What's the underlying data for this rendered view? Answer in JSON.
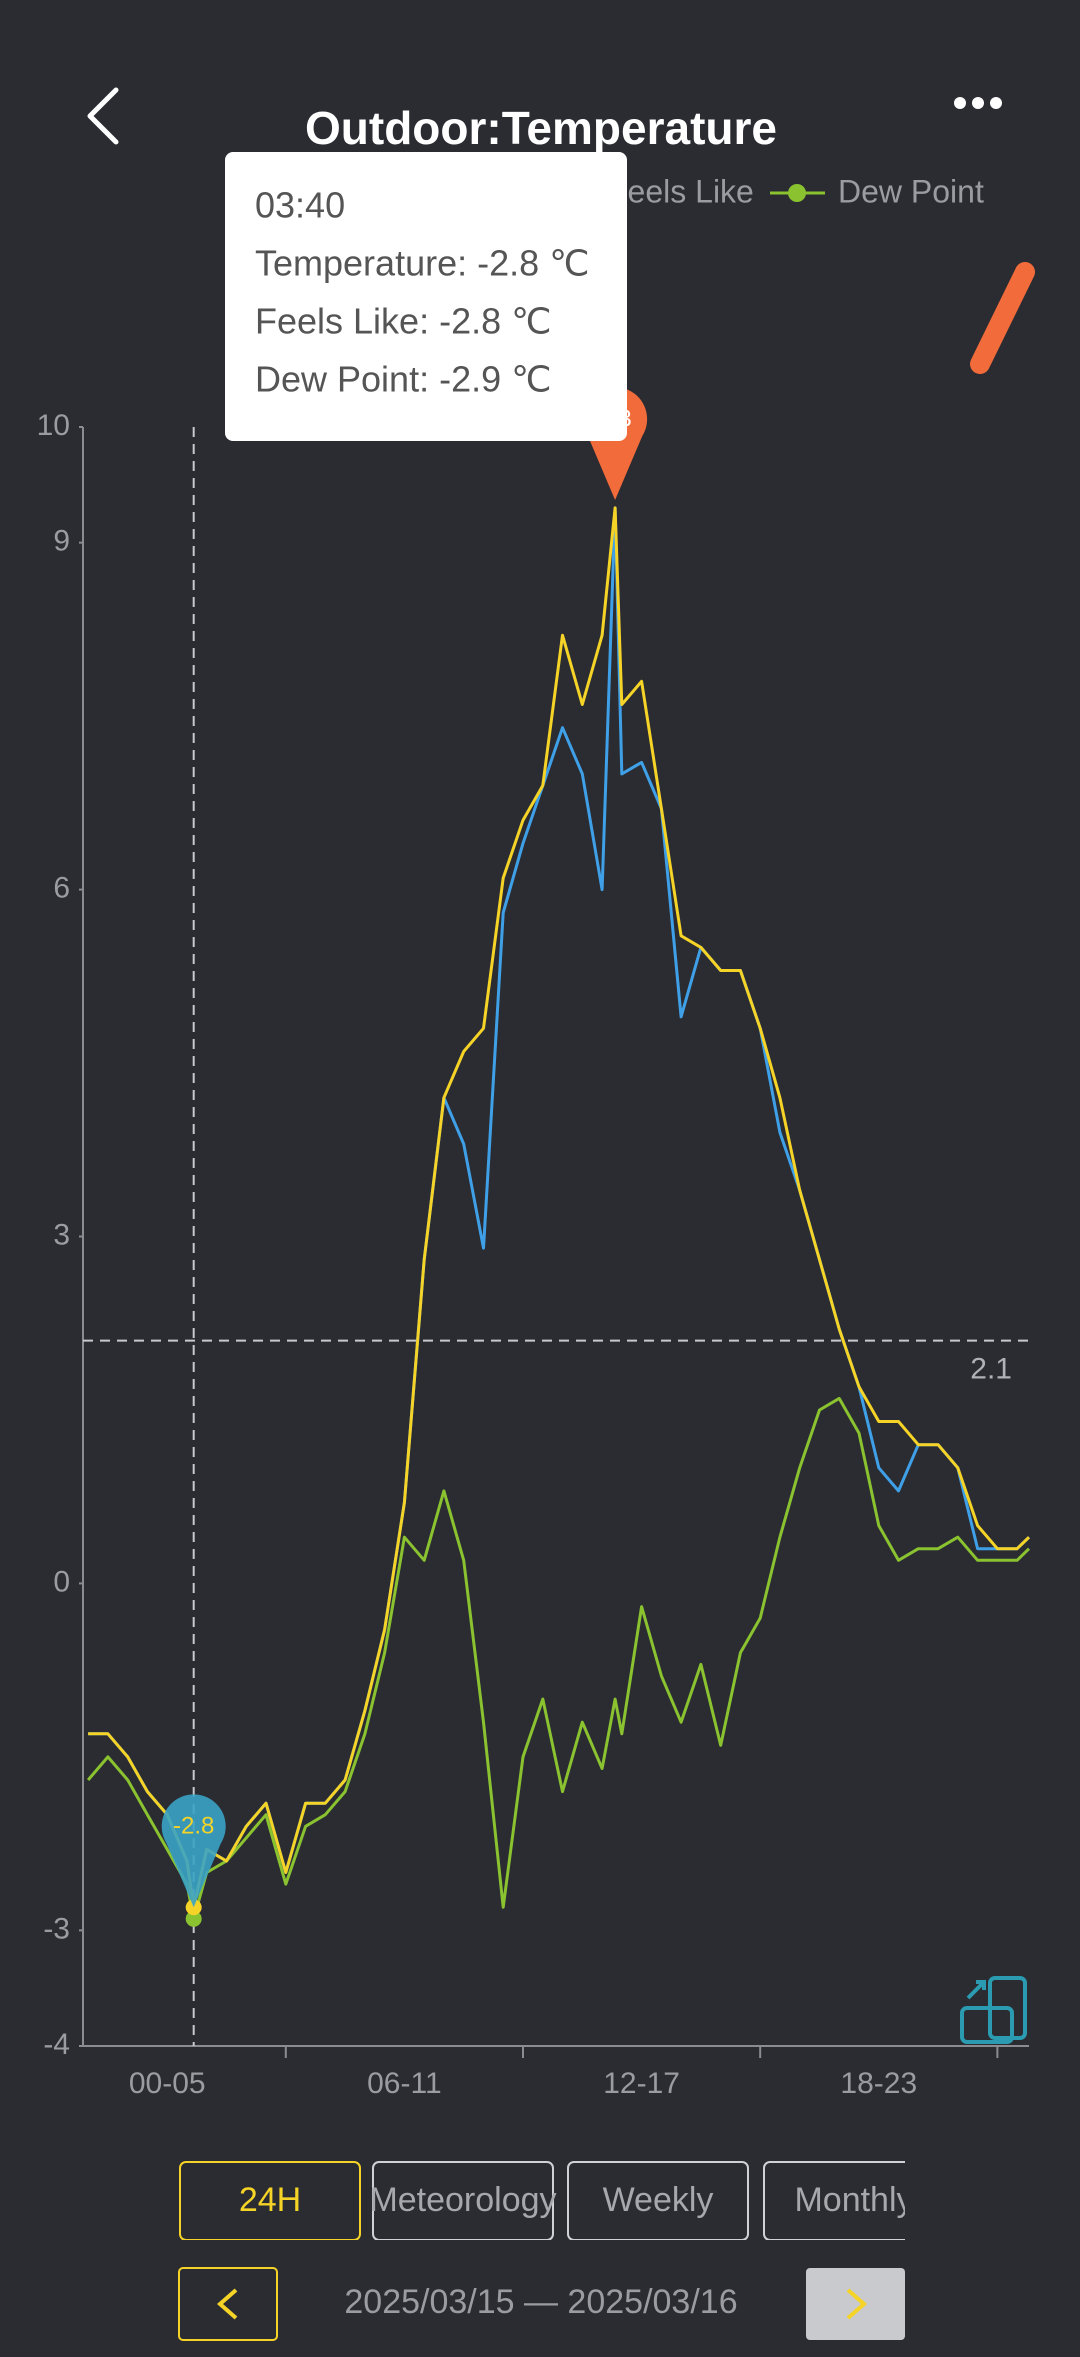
{
  "header": {
    "title": "Outdoor:Temperature"
  },
  "chart_data": {
    "type": "line",
    "x": [
      1,
      1.5,
      2,
      2.5,
      3,
      3.5,
      3.67,
      4,
      4.5,
      5,
      5.5,
      6,
      6.5,
      7,
      7.5,
      8,
      8.5,
      9,
      9.5,
      10,
      10.5,
      11,
      11.5,
      12,
      12.5,
      13,
      13.5,
      14,
      14.33,
      14.5,
      15,
      15.5,
      16,
      16.5,
      17,
      17.5,
      18,
      18.5,
      19,
      19.5,
      20,
      20.5,
      21,
      21.5,
      22,
      22.5,
      23,
      23.5,
      24,
      24.5,
      24.8
    ],
    "series": [
      {
        "name": "Temperature",
        "color": "#f5d327",
        "values": [
          -1.3,
          -1.3,
          -1.5,
          -1.8,
          -2.0,
          -2.4,
          -2.8,
          -2.3,
          -2.4,
          -2.1,
          -1.9,
          -2.5,
          -1.9,
          -1.9,
          -1.7,
          -1.1,
          -0.4,
          0.7,
          2.8,
          4.2,
          4.6,
          4.8,
          6.1,
          6.6,
          6.9,
          8.2,
          7.6,
          8.2,
          9.3,
          7.6,
          7.8,
          6.7,
          5.6,
          5.5,
          5.3,
          5.3,
          4.8,
          4.2,
          3.4,
          2.8,
          2.2,
          1.7,
          1.4,
          1.4,
          1.2,
          1.2,
          1.0,
          0.5,
          0.3,
          0.3,
          0.4
        ]
      },
      {
        "name": "Feels Like",
        "color": "#3fa0e8",
        "values": [
          -1.3,
          -1.3,
          -1.5,
          -1.8,
          -2.0,
          -2.4,
          -2.8,
          -2.3,
          -2.4,
          -2.1,
          -1.9,
          -2.5,
          -1.9,
          -1.9,
          -1.7,
          -1.1,
          -0.4,
          0.7,
          2.8,
          4.2,
          3.8,
          2.9,
          5.8,
          6.4,
          6.9,
          7.4,
          7.0,
          6.0,
          9.3,
          7.0,
          7.1,
          6.7,
          4.9,
          5.5,
          5.3,
          5.3,
          4.8,
          3.9,
          3.4,
          2.8,
          2.2,
          1.7,
          1.0,
          0.8,
          1.2,
          1.2,
          1.0,
          0.3,
          0.3,
          0.3,
          0.4
        ]
      },
      {
        "name": "Dew Point",
        "color": "#8ac230",
        "values": [
          -1.7,
          -1.5,
          -1.7,
          -2.0,
          -2.3,
          -2.6,
          -2.9,
          -2.5,
          -2.4,
          -2.2,
          -2.0,
          -2.6,
          -2.1,
          -2.0,
          -1.8,
          -1.3,
          -0.6,
          0.4,
          0.2,
          0.8,
          0.2,
          -1.2,
          -2.8,
          -1.5,
          -1.0,
          -1.8,
          -1.2,
          -1.6,
          -1.0,
          -1.3,
          -0.2,
          -0.8,
          -1.2,
          -0.7,
          -1.4,
          -0.6,
          -0.3,
          0.4,
          1.0,
          1.5,
          1.6,
          1.3,
          0.5,
          0.2,
          0.3,
          0.3,
          0.4,
          0.2,
          0.2,
          0.2,
          0.3
        ]
      }
    ],
    "xlim": [
      0.87,
      24.8
    ],
    "xticks": [
      {
        "value": 3,
        "label": "00-05"
      },
      {
        "value": 9,
        "label": "06-11"
      },
      {
        "value": 15,
        "label": "12-17"
      },
      {
        "value": 21,
        "label": "18-23"
      }
    ],
    "x_tick_marks": [
      6,
      12,
      18,
      24
    ],
    "ylim": [
      -4,
      10
    ],
    "yticks": [
      -4,
      -3,
      0,
      3,
      6,
      9,
      10
    ],
    "max": {
      "x": 14.33,
      "value": 9.3,
      "color": "#f26b3a"
    },
    "min": {
      "x": 3.67,
      "value": -2.8,
      "label": "-2.8",
      "color": "#3aa3c4"
    },
    "average": 2.1
  },
  "tooltip": {
    "time": "03:40",
    "lines": [
      "Temperature: -2.8 ℃",
      "Feels Like: -2.8 ℃",
      "Dew Point: -2.9 ℃"
    ]
  },
  "tabs": [
    "24H",
    "Meteorology",
    "Weekly",
    "Monthly"
  ],
  "date_range": "2025/03/15 — 2025/03/16"
}
